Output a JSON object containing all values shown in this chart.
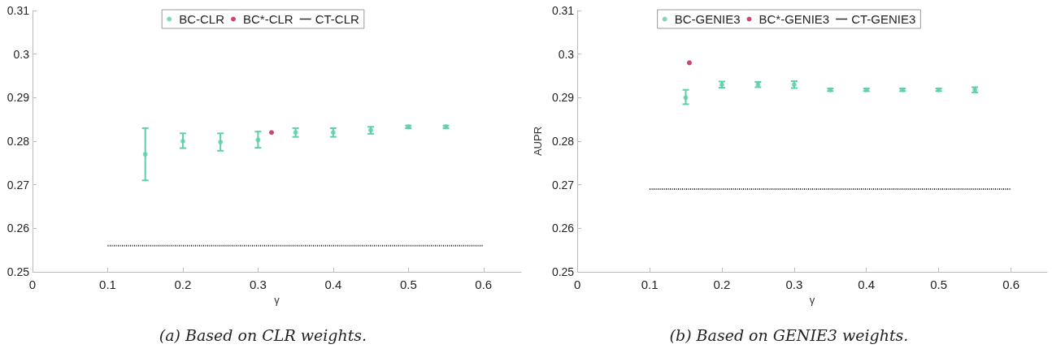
{
  "chart_data": [
    {
      "type": "scatter",
      "title": "(a) Based on CLR weights.",
      "xlabel": "γ",
      "xlim": [
        0,
        0.65
      ],
      "xticks": [
        0,
        0.1,
        0.2,
        0.3,
        0.4,
        0.5,
        0.6
      ],
      "ylim": [
        0.25,
        0.31
      ],
      "yticks": [
        0.25,
        0.26,
        0.27,
        0.28,
        0.29,
        0.3,
        0.31
      ],
      "grid": false,
      "legend": "top",
      "series": [
        {
          "name": "BC-CLR",
          "marker": "circle",
          "color": "#5fcfa5",
          "x": [
            0.15,
            0.2,
            0.25,
            0.3,
            0.35,
            0.4,
            0.45,
            0.5,
            0.55
          ],
          "values": [
            0.277,
            0.28,
            0.2798,
            0.2803,
            0.282,
            0.282,
            0.2825,
            0.2833,
            0.2833
          ],
          "errors": [
            [
              0.271,
              0.283
            ],
            [
              0.2784,
              0.2818
            ],
            [
              0.2778,
              0.2818
            ],
            [
              0.2785,
              0.2822
            ],
            [
              0.281,
              0.283
            ],
            [
              0.281,
              0.283
            ],
            [
              0.2817,
              0.2833
            ],
            [
              0.283,
              0.2836
            ],
            [
              0.283,
              0.2836
            ]
          ]
        },
        {
          "name": "BC*-CLR",
          "marker": "circle",
          "color": "#c8144a",
          "x": [
            0.318
          ],
          "values": [
            0.282
          ]
        },
        {
          "name": "CT-CLR",
          "type": "line",
          "marker": "none",
          "line_style": "dotted",
          "color": "#222222",
          "x": [
            0.1,
            0.6
          ],
          "values": [
            0.256,
            0.256
          ]
        }
      ]
    },
    {
      "type": "scatter",
      "title": "(b) Based on GENIE3 weights.",
      "xlabel": "γ",
      "ylabel": "AUPR",
      "xlim": [
        0,
        0.65
      ],
      "xticks": [
        0,
        0.1,
        0.2,
        0.3,
        0.4,
        0.5,
        0.6
      ],
      "ylim": [
        0.25,
        0.31
      ],
      "yticks": [
        0.25,
        0.26,
        0.27,
        0.28,
        0.29,
        0.3,
        0.31
      ],
      "grid": false,
      "legend": "top",
      "series": [
        {
          "name": "BC-GENIE3",
          "marker": "circle",
          "color": "#5fcfa5",
          "x": [
            0.15,
            0.2,
            0.25,
            0.3,
            0.35,
            0.4,
            0.45,
            0.5,
            0.55
          ],
          "values": [
            0.29,
            0.293,
            0.293,
            0.293,
            0.2918,
            0.2918,
            0.2918,
            0.2918,
            0.2918
          ],
          "errors": [
            [
              0.2885,
              0.2918
            ],
            [
              0.2923,
              0.2937
            ],
            [
              0.2924,
              0.2936
            ],
            [
              0.2922,
              0.2938
            ],
            [
              0.2915,
              0.2921
            ],
            [
              0.2915,
              0.2921
            ],
            [
              0.2915,
              0.2921
            ],
            [
              0.2915,
              0.2921
            ],
            [
              0.2912,
              0.2924
            ]
          ]
        },
        {
          "name": "BC*-GENIE3",
          "marker": "circle",
          "color": "#c8144a",
          "x": [
            0.155
          ],
          "values": [
            0.298
          ]
        },
        {
          "name": "CT-GENIE3",
          "type": "line",
          "marker": "none",
          "line_style": "dotted",
          "color": "#222222",
          "x": [
            0.1,
            0.6
          ],
          "values": [
            0.269,
            0.269
          ]
        }
      ]
    }
  ]
}
